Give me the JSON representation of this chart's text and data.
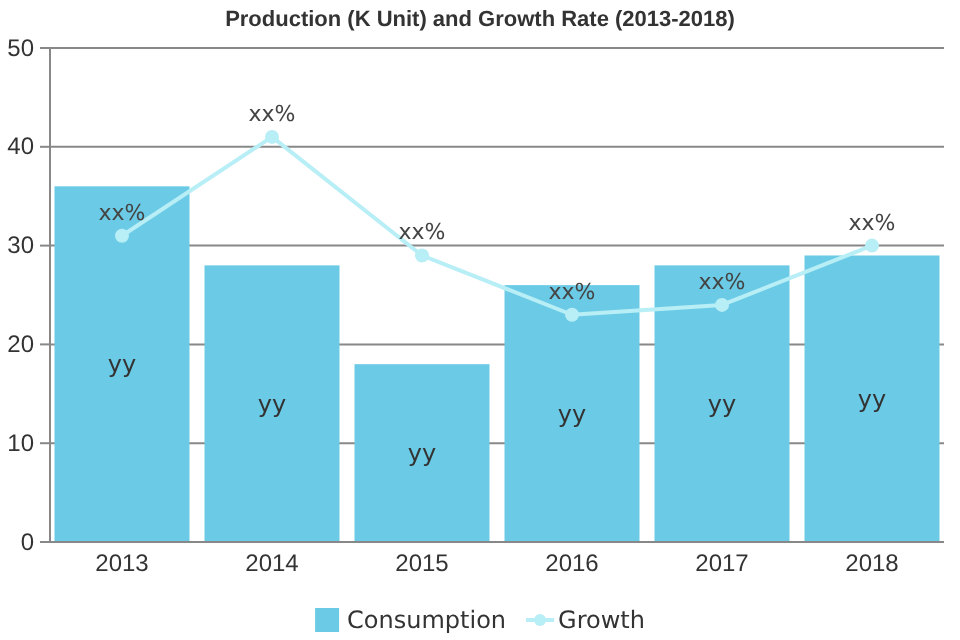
{
  "chart_data": {
    "type": "bar",
    "title": "Production (K Unit) and Growth Rate (2013-2018)",
    "categories": [
      "2013",
      "2014",
      "2015",
      "2016",
      "2017",
      "2018"
    ],
    "series": [
      {
        "name": "Consumption",
        "color": "#6bcbe6",
        "values": [
          36,
          28,
          18,
          26,
          28,
          29
        ],
        "value_labels": [
          "yy",
          "yy",
          "yy",
          "yy",
          "yy",
          "yy"
        ]
      },
      {
        "name": "Growth",
        "type": "line",
        "color": "#b8eef5",
        "marker": "circle",
        "values": [
          31,
          41,
          29,
          23,
          24,
          30
        ],
        "value_labels": [
          "xx%",
          "xx%",
          "xx%",
          "xx%",
          "xx%",
          "xx%"
        ]
      }
    ],
    "ylim": [
      0,
      50
    ],
    "yticks": [
      0,
      10,
      20,
      30,
      40,
      50
    ],
    "grid": "y",
    "legend": "bottom"
  }
}
